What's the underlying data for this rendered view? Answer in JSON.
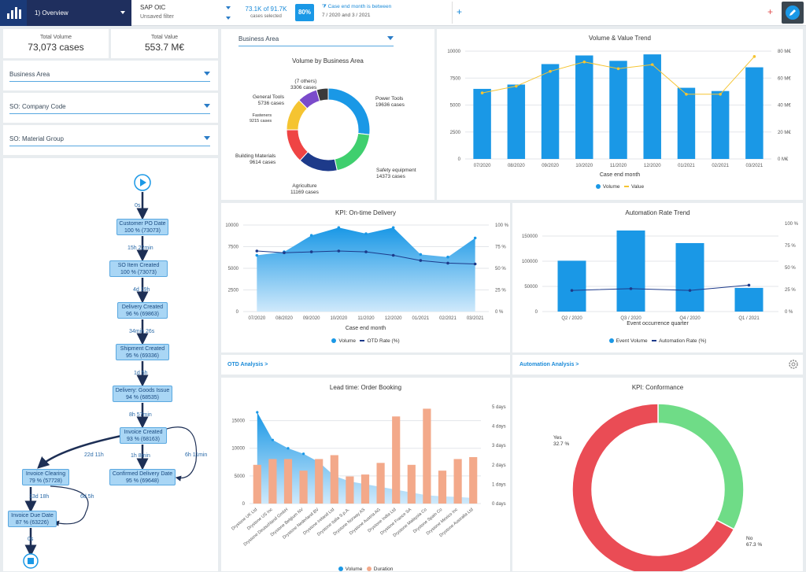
{
  "header": {
    "tab_label": "1) Overview",
    "source_title": "SAP OtC",
    "filter_status": "Unsaved filter",
    "cases_value": "73.1K of 91.7K",
    "cases_caption": "cases selected",
    "percent_badge": "80%",
    "filter_title": "Case end month is between",
    "filter_value": "7 / 2020 and 3 / 2021",
    "add_label": "+",
    "plus_label": "+"
  },
  "kpis": {
    "total_volume_label": "Total Volume",
    "total_volume_value": "73,073 cases",
    "total_value_label": "Total Value",
    "total_value_value": "553.7 M€"
  },
  "filters": [
    "Business Area",
    "SO: Company Code",
    "SO: Material Group"
  ],
  "process": {
    "nodes": [
      {
        "name": "Customer PO Date",
        "stat": "100 % (73073)"
      },
      {
        "name": "SO Item Created",
        "stat": "100 % (73073)"
      },
      {
        "name": "Delivery Created",
        "stat": "96 % (69863)"
      },
      {
        "name": "Shipment Created",
        "stat": "95 % (69336)"
      },
      {
        "name": "Delivery: Goods Issue",
        "stat": "94 % (68535)"
      },
      {
        "name": "Invoice Created",
        "stat": "93 % (68163)"
      },
      {
        "name": "Invoice Clearing",
        "stat": "79 % (57728)"
      },
      {
        "name": "Confirmed Delivery Date",
        "stat": "95 % (69648)"
      },
      {
        "name": "Invoice Due Date",
        "stat": "87 % (63226)"
      }
    ],
    "edges": [
      "0s",
      "15h 22min",
      "4d 19h",
      "34min 26s",
      "1d 5h",
      "8h 57min",
      "22d 11h",
      "1h 8min",
      "6h 11min",
      "13d 18h",
      "6d 5h",
      "0s"
    ]
  },
  "donut": {
    "dropdown": "Business Area",
    "title": "Volume by Business Area",
    "slices": [
      {
        "name": "Power Tools",
        "label": "19636 cases",
        "value": 19636,
        "color": "#1a98e6"
      },
      {
        "name": "Safety equipment",
        "label": "14373 cases",
        "value": 14373,
        "color": "#3fcf6e"
      },
      {
        "name": "Agriculture",
        "label": "11169 cases",
        "value": 11169,
        "color": "#1d3a8a"
      },
      {
        "name": "Building Materials",
        "label": "9614 cases",
        "value": 9614,
        "color": "#ef4444"
      },
      {
        "name": "Fasteners",
        "label": "9215 cases",
        "value": 9215,
        "color": "#f5c431"
      },
      {
        "name": "General Tools",
        "label": "5736 cases",
        "value": 5736,
        "color": "#7b4bcb"
      },
      {
        "name": "(7 others)",
        "label": "3306 cases",
        "value": 3306,
        "color": "#3a3a3a"
      }
    ]
  },
  "chart_data": [
    {
      "type": "bar",
      "title": "Volume & Value Trend",
      "xlabel": "Case end month",
      "categories": [
        "07/2020",
        "08/2020",
        "09/2020",
        "10/2020",
        "11/2020",
        "12/2020",
        "01/2021",
        "02/2021",
        "03/2021"
      ],
      "series": [
        {
          "name": "Volume",
          "values": [
            6500,
            6900,
            8800,
            9600,
            9100,
            9700,
            6600,
            6300,
            8500
          ],
          "color": "#1a98e6"
        },
        {
          "name": "Value",
          "values": [
            49,
            54,
            65,
            72,
            67,
            70,
            48,
            48,
            76
          ],
          "color": "#f5c431"
        }
      ],
      "yticks_left": [
        "10000",
        "7500",
        "5000",
        "2500",
        "0"
      ],
      "yticks_right": [
        "80 M€",
        "60 M€",
        "40 M€",
        "20 M€",
        "0 M€"
      ],
      "ylim": [
        0,
        10000
      ],
      "ylim_right": [
        0,
        80
      ]
    },
    {
      "type": "area",
      "title": "KPI: On-time Delivery",
      "xlabel": "Case end month",
      "categories": [
        "07/2020",
        "08/2020",
        "09/2020",
        "10/2020",
        "11/2020",
        "12/2020",
        "01/2021",
        "02/2021",
        "03/2021"
      ],
      "series": [
        {
          "name": "Volume",
          "values": [
            6500,
            6900,
            8800,
            9700,
            9000,
            9700,
            6600,
            6300,
            8500
          ],
          "color": "#1a98e6"
        },
        {
          "name": "OTD Rate (%)",
          "values": [
            70,
            68,
            69,
            70,
            69,
            65,
            59,
            56,
            55
          ],
          "color": "#1d3a8a"
        }
      ],
      "yticks_left": [
        "10000",
        "7500",
        "5000",
        "2500",
        "0"
      ],
      "yticks_right": [
        "100 %",
        "75 %",
        "50 %",
        "25 %",
        "0 %"
      ],
      "ylim": [
        0,
        10000
      ],
      "ylim_right": [
        0,
        100
      ]
    },
    {
      "type": "bar",
      "title": "Automation Rate Trend",
      "xlabel": "Event occurrence quarter",
      "categories": [
        "Q2 / 2020",
        "Q3 / 2020",
        "Q4 / 2020",
        "Q1 / 2021"
      ],
      "series": [
        {
          "name": "Event Volume",
          "values": [
            101000,
            161000,
            136000,
            47000
          ],
          "color": "#1a98e6"
        },
        {
          "name": "Automation Rate (%)",
          "values": [
            24,
            26,
            24,
            30
          ],
          "color": "#1d3a8a"
        }
      ],
      "yticks_left": [
        "150000",
        "100000",
        "50000",
        "0"
      ],
      "yticks_right": [
        "100 %",
        "75 %",
        "50 %",
        "25 %",
        "0 %"
      ],
      "ylim": [
        0,
        175000
      ],
      "ylim_right": [
        0,
        100
      ]
    },
    {
      "type": "bar",
      "title": "Lead time: Order Booking",
      "categories": [
        "Drystone UK Ltd",
        "Drystone US Inc",
        "Drystone Deutschland GmbH",
        "Drystone Belgium NV",
        "Drystone Nederland BV",
        "Drystone Ireland Ltd",
        "Drystone Italia S.p.A.",
        "Drystone Norway AS",
        "Drystone Austria AG",
        "Drystone India Ltd",
        "Drystone France SA",
        "Drystone Malaysia Co",
        "Drystone Spain Co",
        "Drystone Mexico Inc",
        "Drystone Australia Ltd"
      ],
      "series": [
        {
          "name": "Volume",
          "values": [
            16500,
            11500,
            10000,
            9000,
            7500,
            5000,
            4000,
            3500,
            3000,
            2500,
            2000,
            1500,
            1300,
            1200,
            1000
          ],
          "color": "#1a98e6"
        },
        {
          "name": "Duration",
          "values": [
            2.0,
            2.3,
            2.3,
            1.7,
            2.3,
            2.5,
            1.4,
            1.5,
            2.1,
            4.5,
            2.0,
            4.9,
            1.7,
            2.3,
            2.4
          ],
          "color": "#f3a98a"
        }
      ],
      "yticks_left": [
        "15000",
        "10000",
        "5000",
        "0"
      ],
      "yticks_right": [
        "5 days",
        "4 days",
        "3 days",
        "2 days",
        "1 days",
        "0 days"
      ],
      "ylim": [
        0,
        17500
      ],
      "ylim_right": [
        0,
        5
      ]
    },
    {
      "type": "pie",
      "title": "KPI: Conformance",
      "categories": [
        "Yes",
        "No"
      ],
      "values": [
        32.7,
        67.3
      ],
      "labels": [
        "32.7 %",
        "67.3 %"
      ],
      "colors": [
        "#6fdc87",
        "#ea4c55"
      ]
    }
  ],
  "links": {
    "otd": "OTD Analysis >",
    "automation": "Automation Analysis >"
  }
}
